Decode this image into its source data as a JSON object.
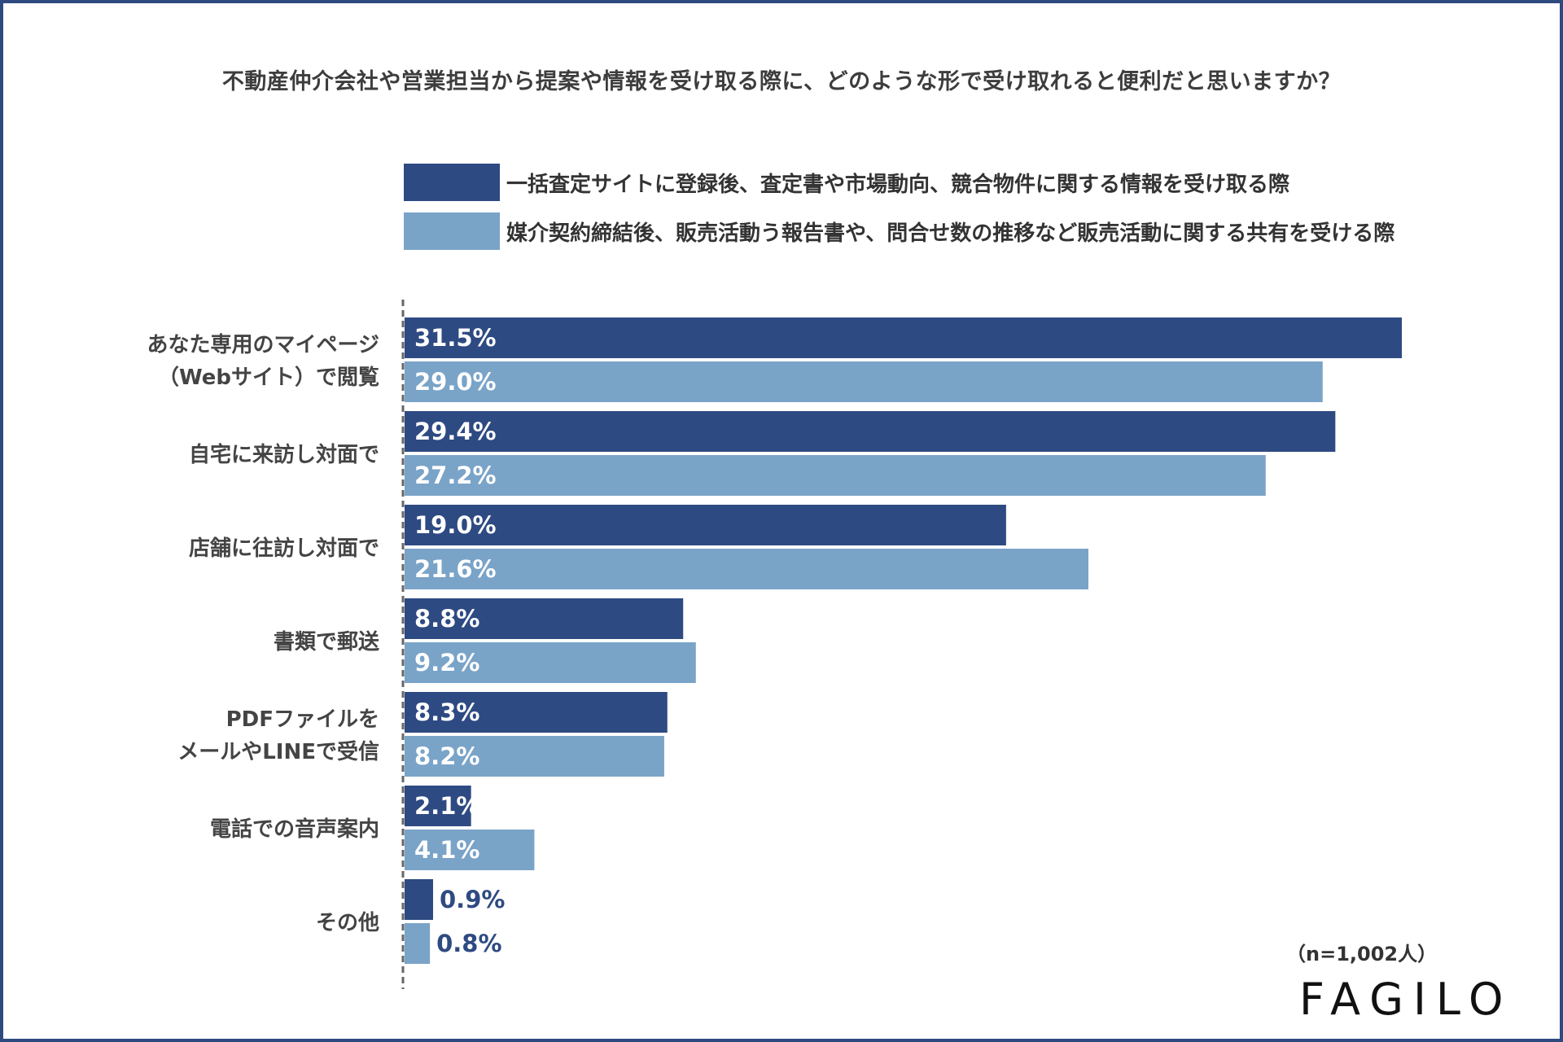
{
  "chart_data": {
    "type": "bar",
    "orientation": "horizontal",
    "title": "不動産仲介会社や営業担当から提案や情報を受け取る際に、どのような形で受け取れると便利だと思いますか？",
    "categories": [
      [
        "あなた専用のマイページ",
        "（Webサイト）で閲覧"
      ],
      [
        "自宅に来訪し対面で"
      ],
      [
        "店舗に往訪し対面で"
      ],
      [
        "書類で郵送"
      ],
      [
        "PDFファイルを",
        "メールやLINEで受信"
      ],
      [
        "電話での音声案内"
      ],
      [
        "その他"
      ]
    ],
    "series": [
      {
        "name": "一括査定サイトに登録後、査定書や市場動向、競合物件に関する情報を受け取る際",
        "color": "#2e4a82",
        "values": [
          31.5,
          29.4,
          19.0,
          8.8,
          8.3,
          2.1,
          0.9
        ],
        "labels": [
          "31.5%",
          "29.4%",
          "19.0%",
          "8.8%",
          "8.3%",
          "2.1%",
          "0.9%"
        ]
      },
      {
        "name": "媒介契約締結後、販売活動う報告書や、問合せ数の推移など販売活動に関する共有を受ける際",
        "color": "#7aa3c8",
        "values": [
          29.0,
          27.2,
          21.6,
          9.2,
          8.2,
          4.1,
          0.8
        ],
        "labels": [
          "29.0%",
          "27.2%",
          "21.6%",
          "9.2%",
          "8.2%",
          "4.1%",
          "0.8%"
        ]
      }
    ],
    "xlim": [
      0,
      31.5
    ],
    "unit": "%",
    "grid": false,
    "legend": "top",
    "sample_note": "（n=1,002人）"
  },
  "brand": {
    "logo": "FAGILO",
    "frame_color": "#2e4a7f"
  }
}
